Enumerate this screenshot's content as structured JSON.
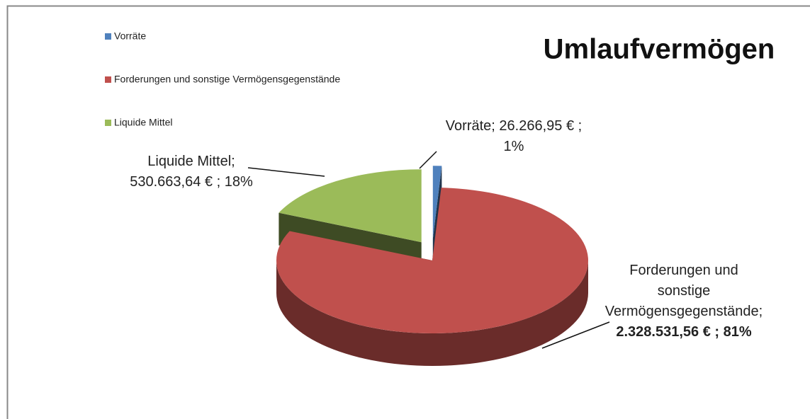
{
  "chart_data": {
    "type": "pie",
    "title": "Umlaufvermögen",
    "categories": [
      "Vorräte",
      "Forderungen und sonstige Vermögensgegenstände",
      "Liquide Mittel"
    ],
    "values": [
      26266.95,
      2328531.56,
      530663.64
    ],
    "value_labels": [
      "26.266,95 € ; 1%",
      "2.328.531,56 € ; 81%",
      "530.663,64 € ; 18%"
    ],
    "label_separator": ";",
    "colors": [
      "#4f81bd",
      "#c0504d",
      "#9bbb59"
    ],
    "exploded": [
      true,
      false,
      true
    ],
    "legend": "top-left"
  }
}
